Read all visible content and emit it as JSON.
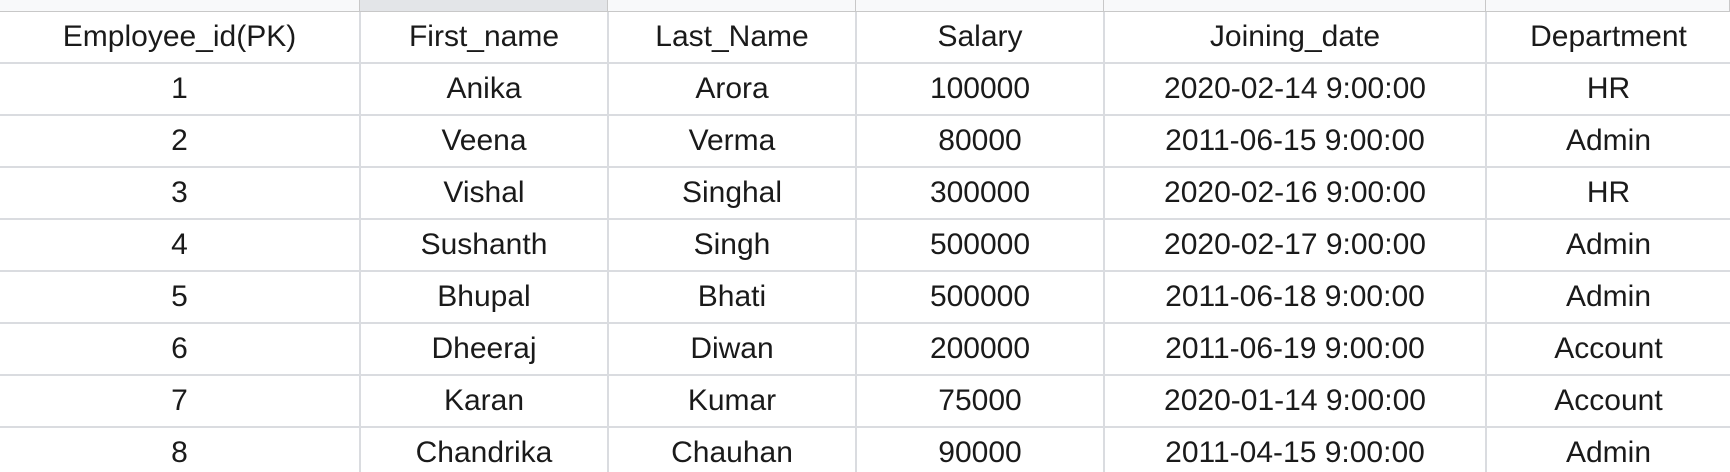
{
  "table": {
    "columns": [
      "Employee_id(PK)",
      "First_name",
      "Last_Name",
      "Salary",
      "Joining_date",
      "Department"
    ],
    "rows": [
      [
        "1",
        "Anika",
        "Arora",
        "100000",
        "2020-02-14 9:00:00",
        "HR"
      ],
      [
        "2",
        "Veena",
        "Verma",
        "80000",
        "2011-06-15 9:00:00",
        "Admin"
      ],
      [
        "3",
        "Vishal",
        "Singhal",
        "300000",
        "2020-02-16 9:00:00",
        "HR"
      ],
      [
        "4",
        "Sushanth",
        "Singh",
        "500000",
        "2020-02-17 9:00:00",
        "Admin"
      ],
      [
        "5",
        "Bhupal",
        "Bhati",
        "500000",
        "2011-06-18 9:00:00",
        "Admin"
      ],
      [
        "6",
        "Dheeraj",
        "Diwan",
        "200000",
        "2011-06-19 9:00:00",
        "Account"
      ],
      [
        "7",
        "Karan",
        "Kumar",
        "75000",
        "2020-01-14 9:00:00",
        "Account"
      ],
      [
        "8",
        "Chandrika",
        "Chauhan",
        "90000",
        "2011-04-15 9:00:00",
        "Admin"
      ]
    ]
  },
  "colors": {
    "grid_line": "#dadce0",
    "text": "#1a1a1a",
    "background": "#ffffff",
    "selected_column_header": "#e3e5e8"
  }
}
